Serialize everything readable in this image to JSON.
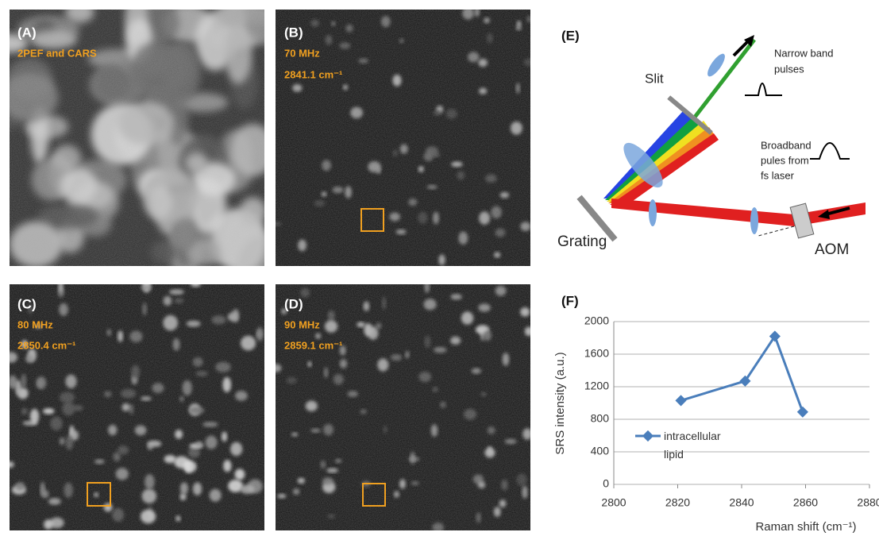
{
  "panels": [
    {
      "label": "(A)",
      "lines": [
        "2PEF and CARS"
      ]
    },
    {
      "label": "(B)",
      "lines": [
        "70 MHz",
        "2841.1 cm⁻¹"
      ]
    },
    {
      "label": "(C)",
      "lines": [
        "80 MHz",
        "2850.4 cm⁻¹"
      ]
    },
    {
      "label": "(D)",
      "lines": [
        "90 MHz",
        "2859.1 cm⁻¹"
      ]
    }
  ],
  "diagram": {
    "label": "(E)",
    "slit": "Slit",
    "narrow": [
      "Narrow band",
      "pulses"
    ],
    "broad": [
      "Broadband",
      "pules from",
      "fs laser"
    ],
    "grating": "Grating",
    "aom": "AOM"
  },
  "chart_data": {
    "type": "line",
    "label": "(F)",
    "x_label": "Raman shift (cm⁻¹)",
    "y_label": "SRS intensity (a.u.)",
    "x": [
      2821,
      2841.1,
      2850.4,
      2859.1
    ],
    "series": [
      {
        "name": "intracellular lipid",
        "color": "#4a7ebb",
        "values": [
          1030,
          1270,
          1820,
          890
        ]
      }
    ],
    "xlim": [
      2800,
      2880
    ],
    "xticks": [
      2800,
      2820,
      2840,
      2860,
      2880
    ],
    "ylim": [
      0,
      2000
    ],
    "yticks": [
      0,
      400,
      800,
      1200,
      1600,
      2000
    ],
    "grid": true
  }
}
